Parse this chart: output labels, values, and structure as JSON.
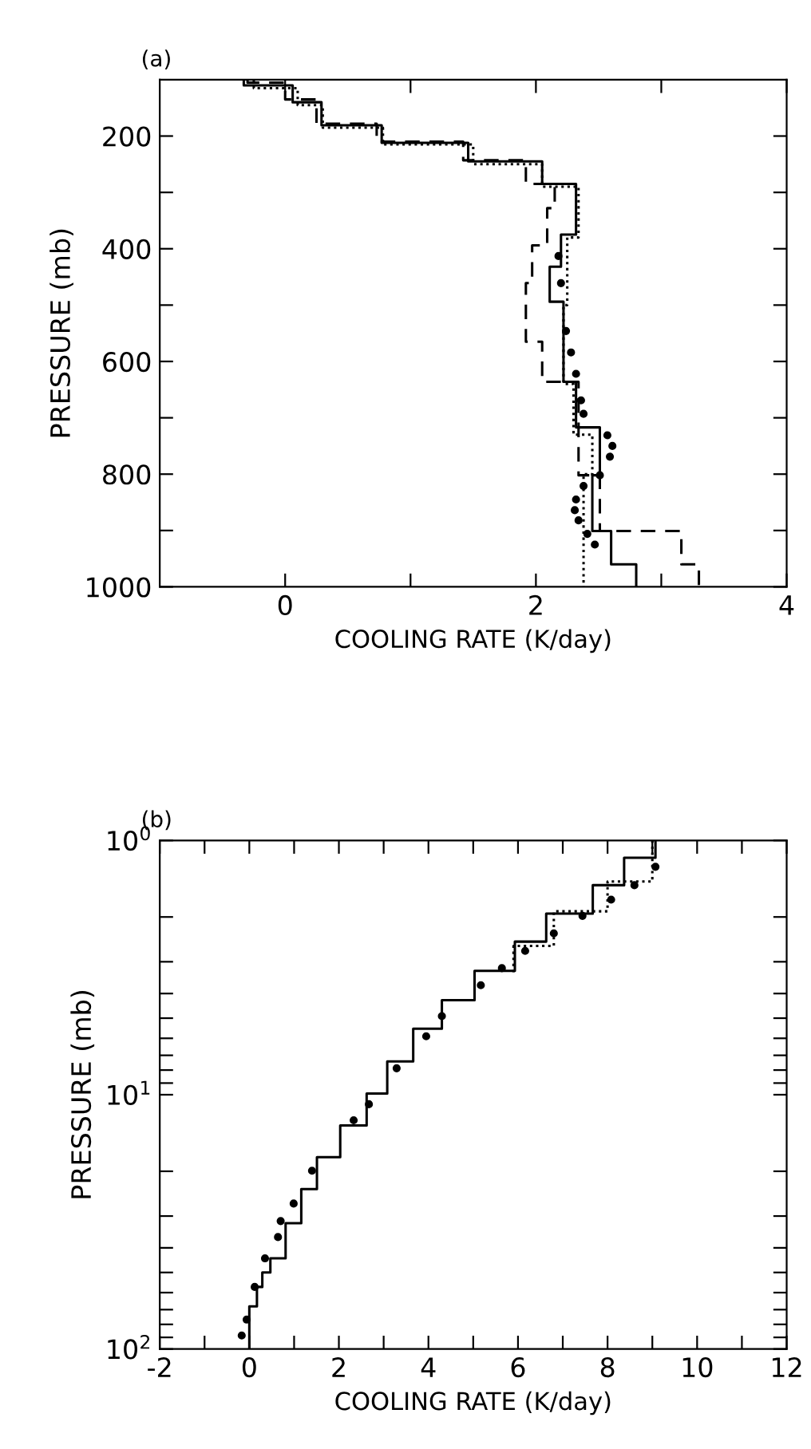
{
  "chart_data": [
    {
      "type": "line",
      "title": "(a)",
      "xlabel": "COOLING RATE (K/day)",
      "ylabel": "PRESSURE (mb)",
      "xlim": [
        -1,
        4
      ],
      "ylim": [
        1000,
        100
      ],
      "xticks": [
        0,
        {
          "value": 1,
          "label": null
        },
        2,
        {
          "value": 3,
          "label": null
        },
        4
      ],
      "yticks": [
        200,
        {
          "value": 300,
          "label": null
        },
        400,
        {
          "value": 500,
          "label": null
        },
        600,
        {
          "value": 700,
          "label": null
        },
        800,
        {
          "value": 900,
          "label": null
        },
        1000
      ],
      "grid": false,
      "legend": false,
      "series": [
        {
          "line_style": "solid",
          "color": "#000000",
          "x": [
            -0.33,
            -0.33,
            0.06,
            0.06,
            0.29,
            0.29,
            0.77,
            0.77,
            1.46,
            1.46,
            2.05,
            2.05,
            2.32,
            2.32,
            2.2,
            2.2,
            2.11,
            2.11,
            2.22,
            2.22,
            2.32,
            2.32,
            2.51,
            2.51,
            2.45,
            2.45,
            2.6,
            2.6,
            2.8,
            2.8
          ],
          "values": [
            100,
            110,
            110,
            140,
            140,
            181,
            181,
            212,
            212,
            245,
            245,
            285,
            285,
            375,
            375,
            432,
            432,
            494,
            494,
            636,
            636,
            717,
            717,
            802,
            802,
            901,
            901,
            960,
            960,
            1000
          ]
        },
        {
          "line_style": "dashed",
          "color": "#000000",
          "x": [
            -0.3,
            -0.3,
            0.0,
            0.0,
            0.25,
            0.25,
            0.73,
            0.73,
            1.42,
            1.42,
            1.92,
            1.92,
            2.15,
            2.15,
            2.09,
            2.09,
            1.97,
            1.97,
            1.92,
            1.92,
            2.05,
            2.05,
            2.34,
            2.34,
            2.51,
            2.51,
            3.16,
            3.16,
            3.3,
            3.3
          ],
          "values": [
            100,
            105,
            105,
            135,
            135,
            178,
            178,
            210,
            210,
            243,
            243,
            285,
            285,
            328,
            328,
            394,
            394,
            461,
            461,
            565,
            565,
            636,
            636,
            802,
            802,
            901,
            901,
            960,
            960,
            1000
          ]
        },
        {
          "line_style": "dotted",
          "color": "#000000",
          "x": [
            -0.25,
            -0.25,
            0.1,
            0.1,
            0.3,
            0.3,
            0.78,
            0.78,
            1.5,
            1.5,
            2.05,
            2.05,
            2.34,
            2.34,
            2.25,
            2.25,
            2.22,
            2.22,
            2.3,
            2.3,
            2.45,
            2.45,
            2.38,
            2.38
          ],
          "values": [
            100,
            115,
            115,
            145,
            145,
            185,
            185,
            215,
            215,
            250,
            250,
            290,
            290,
            380,
            380,
            500,
            500,
            640,
            640,
            730,
            730,
            800,
            800,
            1000
          ]
        },
        {
          "type": "scatter",
          "marker": "circle",
          "color": "#000000",
          "x": [
            2.18,
            2.2,
            2.24,
            2.28,
            2.32,
            2.36,
            2.38,
            2.57,
            2.61,
            2.59,
            2.51,
            2.38,
            2.32,
            2.31,
            2.34,
            2.41,
            2.47
          ],
          "values": [
            413,
            461,
            546,
            584,
            622,
            669,
            693,
            731,
            750,
            769,
            802,
            821,
            845,
            864,
            882,
            906,
            925
          ]
        }
      ]
    },
    {
      "type": "line",
      "title": "(b)",
      "xlabel": "COOLING RATE (K/day)",
      "ylabel": "PRESSURE (mb)",
      "log": "y",
      "xlim": [
        -2,
        12
      ],
      "ylim": [
        100,
        1
      ],
      "xticks": [
        -2,
        {
          "value": -1,
          "label": null
        },
        0,
        {
          "value": 1,
          "label": null
        },
        2,
        {
          "value": 3,
          "label": null
        },
        4,
        {
          "value": 5,
          "label": null
        },
        6,
        {
          "value": 7,
          "label": null
        },
        8,
        {
          "value": 9,
          "label": null
        },
        10,
        {
          "value": 11,
          "label": null
        },
        12
      ],
      "yticks": [
        {
          "value": 1,
          "label": "10$^{0}$"
        },
        {
          "value": 2,
          "label": null
        },
        {
          "value": 3,
          "label": null
        },
        {
          "value": 4,
          "label": null
        },
        {
          "value": 5,
          "label": null
        },
        {
          "value": 6,
          "label": null
        },
        {
          "value": 7,
          "label": null
        },
        {
          "value": 8,
          "label": null
        },
        {
          "value": 9,
          "label": null
        },
        {
          "value": 10,
          "label": "10$^{1}$"
        },
        {
          "value": 20,
          "label": null
        },
        {
          "value": 30,
          "label": null
        },
        {
          "value": 40,
          "label": null
        },
        {
          "value": 50,
          "label": null
        },
        {
          "value": 60,
          "label": null
        },
        {
          "value": 70,
          "label": null
        },
        {
          "value": 80,
          "label": null
        },
        {
          "value": 90,
          "label": null
        },
        {
          "value": 100,
          "label": "10$^{2}$"
        }
      ],
      "grid": false,
      "legend": false,
      "series": [
        {
          "line_style": "solid",
          "color": "#000000",
          "x": [
            0,
            0,
            0.17,
            0.17,
            0.29,
            0.29,
            0.47,
            0.47,
            0.81,
            0.81,
            1.16,
            1.16,
            1.51,
            1.51,
            2.03,
            2.03,
            2.62,
            2.62,
            3.08,
            3.08,
            3.66,
            3.66,
            4.3,
            4.3,
            5.03,
            5.03,
            5.93,
            5.93,
            6.63,
            6.63,
            7.67,
            7.67,
            8.37,
            8.37,
            9.07,
            9.07
          ],
          "values": [
            100,
            68,
            68,
            57,
            57,
            50,
            50,
            44,
            44,
            32,
            32,
            23.5,
            23.5,
            17.6,
            17.6,
            13.2,
            13.2,
            9.9,
            9.9,
            7.4,
            7.4,
            5.5,
            5.5,
            4.25,
            4.25,
            3.26,
            3.26,
            2.5,
            2.5,
            1.94,
            1.94,
            1.5,
            1.5,
            1.17,
            1.17,
            1
          ]
        },
        {
          "line_style": "dotted",
          "color": "#000000",
          "x": [
            9.0,
            9.0,
            8.0,
            8.0,
            6.8,
            6.8,
            5.9,
            5.9
          ],
          "values": [
            1,
            1.45,
            1.45,
            1.9,
            1.9,
            2.6,
            2.6,
            3.3
          ]
        },
        {
          "type": "scatter",
          "marker": "circle",
          "color": "#000000",
          "x": [
            9.07,
            8.6,
            8.08,
            7.44,
            6.8,
            6.16,
            5.64,
            5.17,
            4.3,
            3.95,
            3.29,
            2.67,
            2.33,
            1.4,
            0.99,
            0.7,
            0.64,
            0.35,
            0.12,
            -0.06,
            -0.17
          ],
          "values": [
            1.27,
            1.5,
            1.71,
            1.98,
            2.32,
            2.72,
            3.18,
            3.71,
            4.91,
            5.89,
            7.87,
            10.9,
            12.6,
            19.9,
            26.8,
            31.4,
            36.3,
            44,
            57,
            76.6,
            88.5
          ]
        }
      ]
    }
  ]
}
